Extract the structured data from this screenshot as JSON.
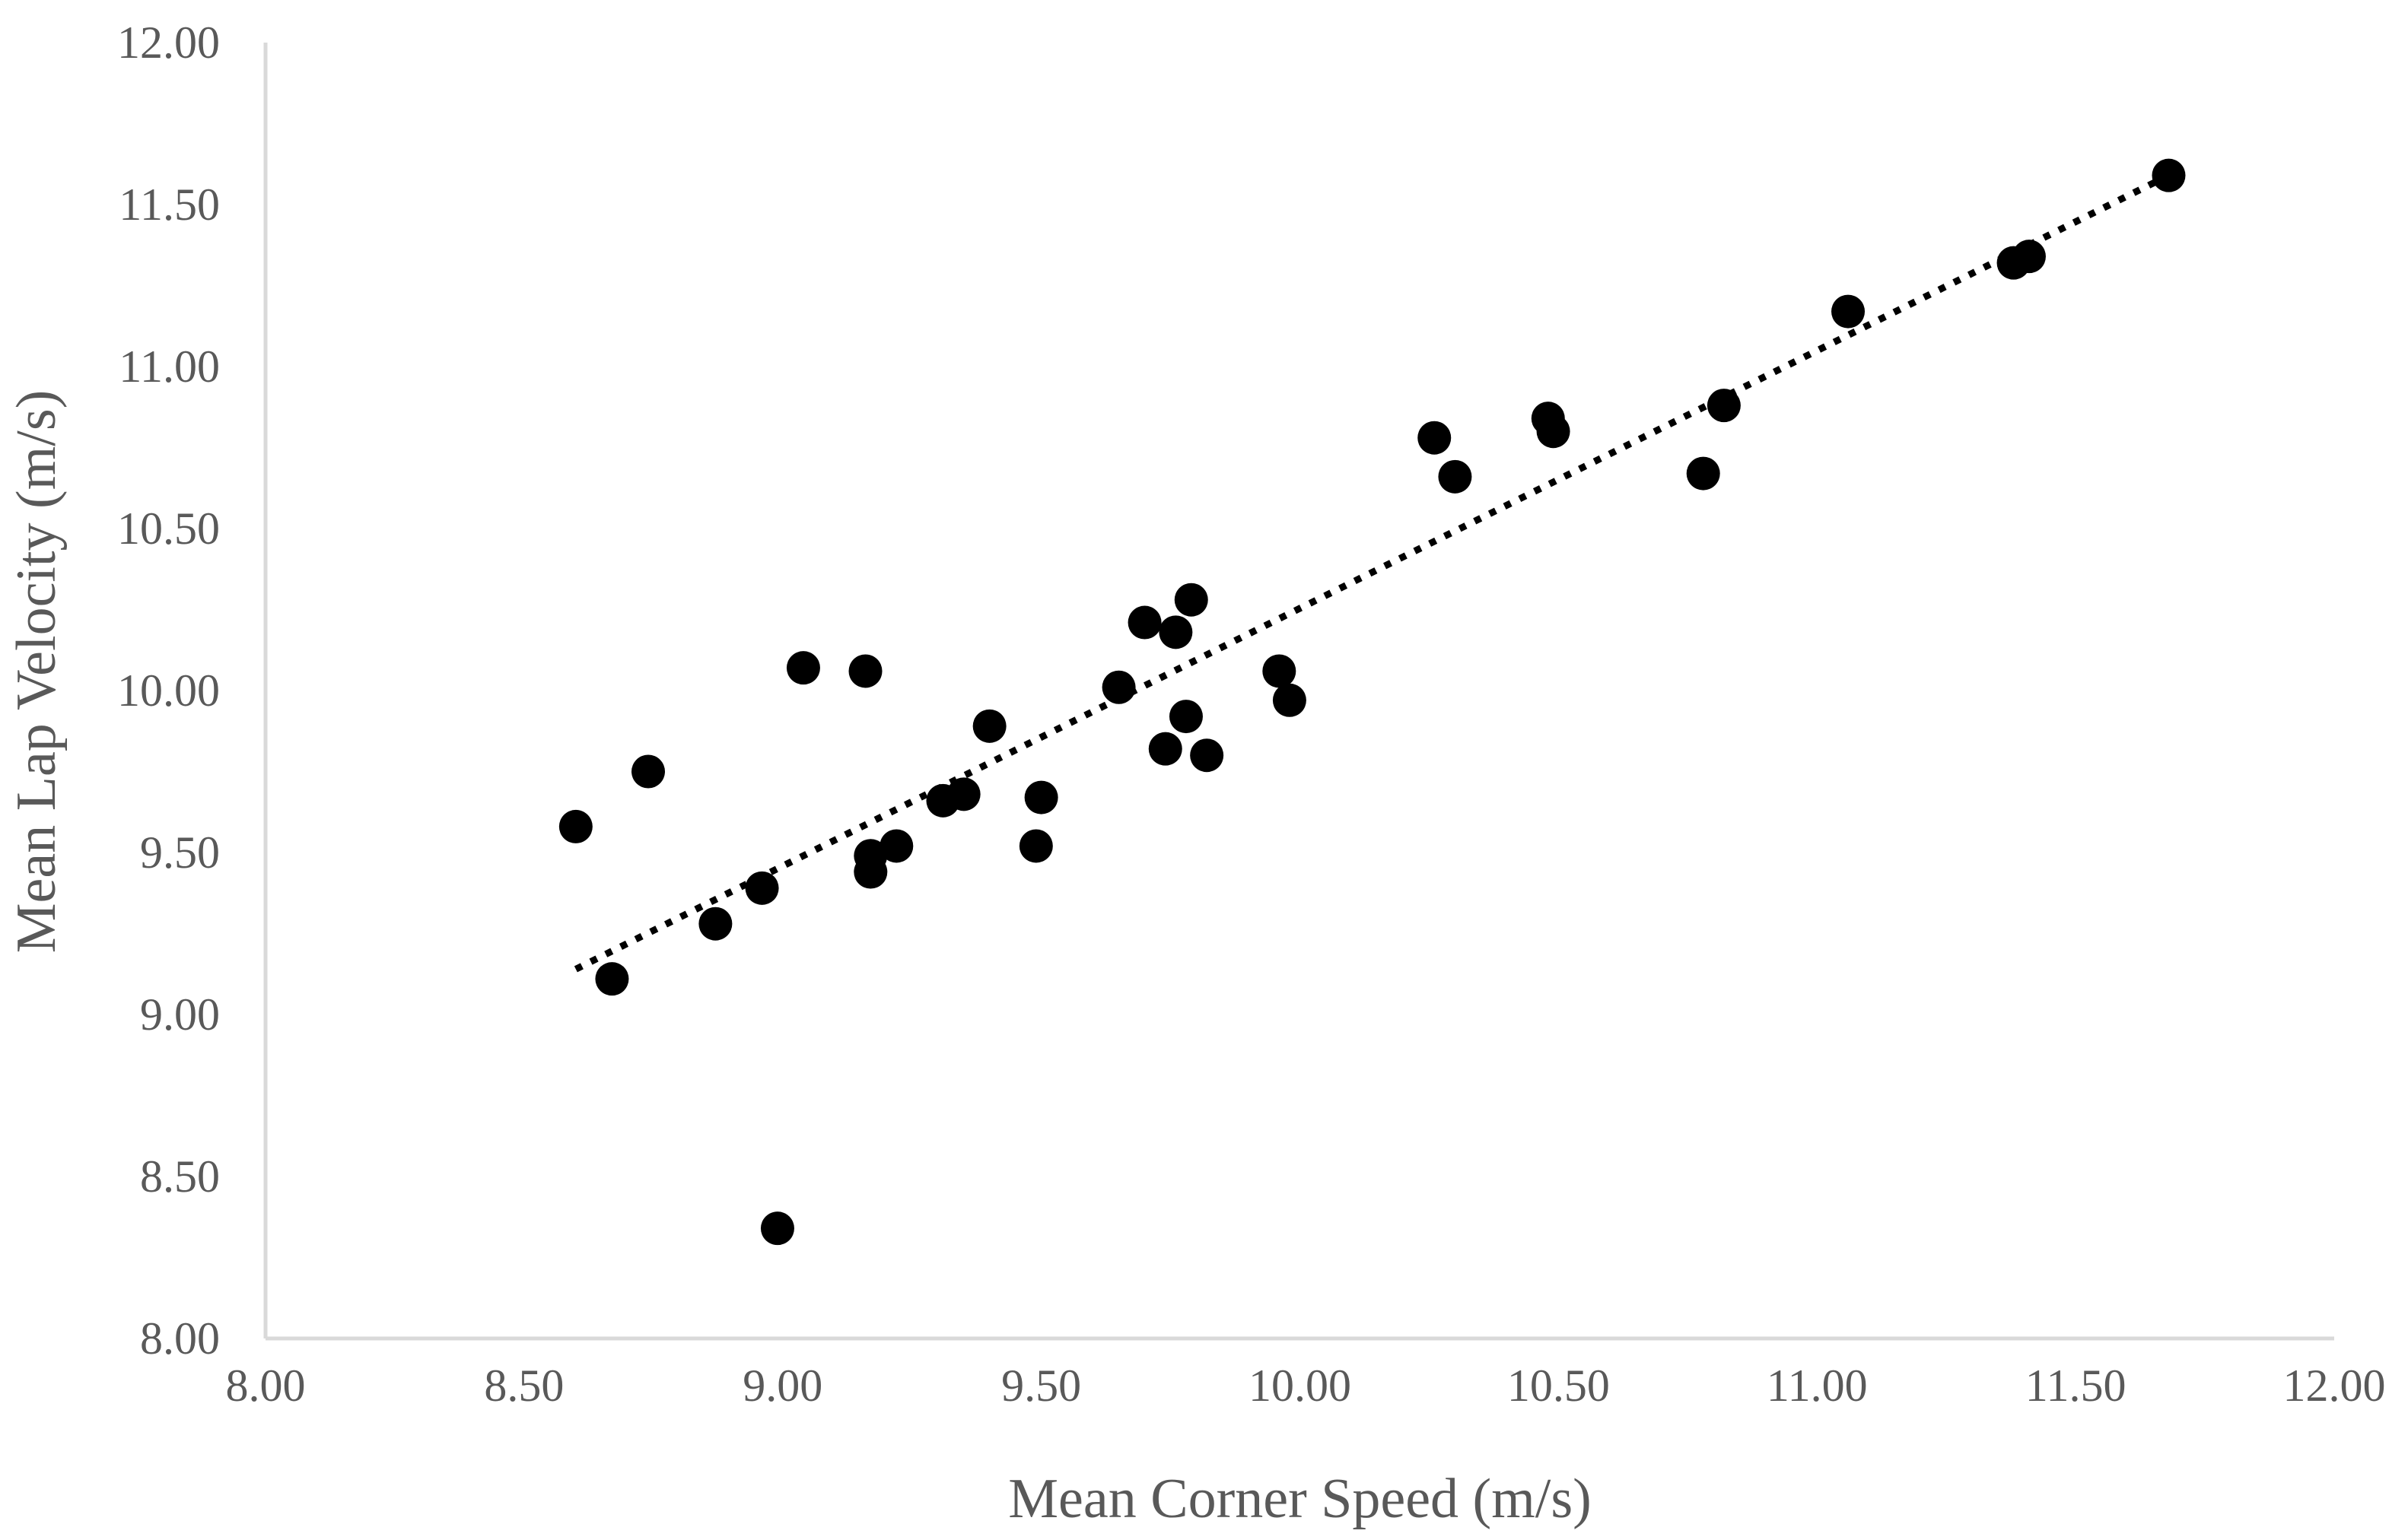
{
  "chart_data": {
    "type": "scatter",
    "title": "",
    "xlabel": "Mean Corner Speed (m/s)",
    "ylabel": "Mean Lap Velocity (m/s)",
    "xlim": [
      8.0,
      12.0
    ],
    "ylim": [
      8.0,
      12.0
    ],
    "x_ticks": [
      "8.00",
      "8.50",
      "9.00",
      "9.50",
      "10.00",
      "10.50",
      "11.00",
      "11.50",
      "12.00"
    ],
    "y_ticks": [
      "8.00",
      "8.50",
      "9.00",
      "9.50",
      "10.00",
      "10.50",
      "11.00",
      "11.50",
      "12.00"
    ],
    "grid": false,
    "legend": "none",
    "colors": {
      "points": "#000000",
      "trendline": "#000000",
      "axis": "#d9d9d9",
      "text": "#595959"
    },
    "points": [
      {
        "x": 8.6,
        "y": 9.58
      },
      {
        "x": 8.67,
        "y": 9.11
      },
      {
        "x": 8.74,
        "y": 9.75
      },
      {
        "x": 8.87,
        "y": 9.28
      },
      {
        "x": 8.96,
        "y": 9.39
      },
      {
        "x": 8.99,
        "y": 8.34
      },
      {
        "x": 9.04,
        "y": 10.07
      },
      {
        "x": 9.16,
        "y": 10.06
      },
      {
        "x": 9.17,
        "y": 9.49
      },
      {
        "x": 9.17,
        "y": 9.44
      },
      {
        "x": 9.22,
        "y": 9.52
      },
      {
        "x": 9.31,
        "y": 9.66
      },
      {
        "x": 9.35,
        "y": 9.68
      },
      {
        "x": 9.4,
        "y": 9.89
      },
      {
        "x": 9.49,
        "y": 9.52
      },
      {
        "x": 9.5,
        "y": 9.67
      },
      {
        "x": 9.65,
        "y": 10.01
      },
      {
        "x": 9.7,
        "y": 10.21
      },
      {
        "x": 9.74,
        "y": 9.82
      },
      {
        "x": 9.76,
        "y": 10.18
      },
      {
        "x": 9.78,
        "y": 9.92
      },
      {
        "x": 9.79,
        "y": 10.28
      },
      {
        "x": 9.82,
        "y": 9.8
      },
      {
        "x": 9.96,
        "y": 10.06
      },
      {
        "x": 9.98,
        "y": 9.97
      },
      {
        "x": 10.26,
        "y": 10.78
      },
      {
        "x": 10.3,
        "y": 10.66
      },
      {
        "x": 10.48,
        "y": 10.84
      },
      {
        "x": 10.49,
        "y": 10.8
      },
      {
        "x": 10.78,
        "y": 10.67
      },
      {
        "x": 10.82,
        "y": 10.88
      },
      {
        "x": 11.06,
        "y": 11.17
      },
      {
        "x": 11.38,
        "y": 11.32
      },
      {
        "x": 11.41,
        "y": 11.34
      },
      {
        "x": 11.68,
        "y": 11.59
      }
    ],
    "trendline": {
      "style": "dotted",
      "x0": 8.6,
      "y0": 9.14,
      "x1": 11.68,
      "y1": 11.59
    }
  }
}
